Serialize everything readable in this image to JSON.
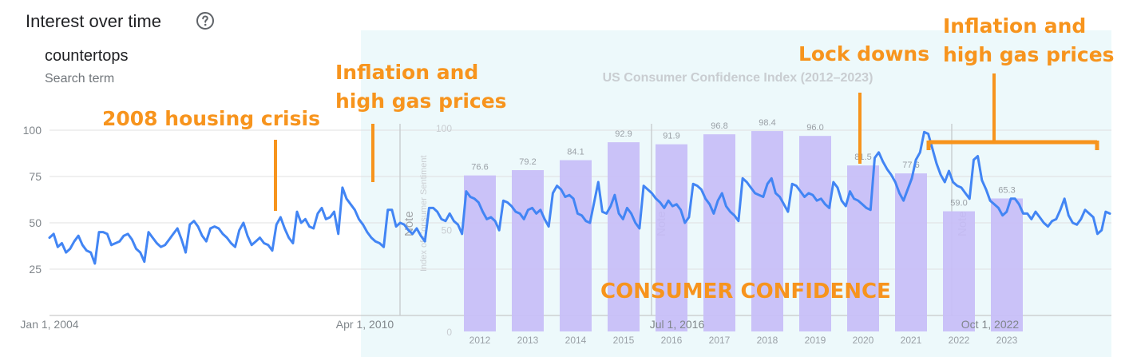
{
  "header": {
    "title": "Interest over time",
    "search_term": "countertops",
    "search_term_caption": "Search term"
  },
  "colors": {
    "trend_line": "#4285f4",
    "bars": "#c7bdf7",
    "overlay_bg": "#edf9fb",
    "annotation": "#f7941d",
    "grid": "#e0e0e0",
    "axis_text": "#80868b"
  },
  "chart_data": [
    {
      "type": "line",
      "series": [
        {
          "values": [
            42,
            44,
            37,
            39,
            34,
            36,
            40,
            43,
            38,
            35,
            34,
            28,
            45,
            45,
            44,
            38,
            39,
            40,
            43,
            44,
            41,
            36,
            34,
            29,
            45,
            42,
            39,
            37,
            38,
            41,
            44,
            47,
            41,
            34,
            49,
            51,
            48,
            43,
            40,
            47,
            48,
            47,
            44,
            42,
            39,
            37,
            46,
            50,
            43,
            38,
            40,
            42,
            39,
            38,
            35,
            49,
            53,
            47,
            42,
            39,
            56,
            50,
            52,
            48,
            47,
            55,
            58,
            52,
            53,
            56,
            44,
            69,
            63,
            60,
            57,
            52,
            49,
            45,
            42,
            40,
            39,
            37,
            57,
            57,
            48,
            50,
            49,
            46,
            44,
            47,
            43,
            40,
            58,
            58,
            56,
            52,
            51,
            55,
            51,
            49,
            44,
            67,
            64,
            63,
            61,
            56,
            52,
            53,
            51,
            46,
            62,
            61,
            59,
            56,
            55,
            52,
            57,
            58,
            55,
            57,
            52,
            48,
            66,
            70,
            68,
            64,
            65,
            63,
            55,
            54,
            51,
            50,
            61,
            72,
            56,
            55,
            59,
            65,
            55,
            52,
            58,
            55,
            50,
            47,
            70,
            68,
            66,
            63,
            61,
            58,
            62,
            59,
            60,
            57,
            50,
            53,
            71,
            70,
            68,
            63,
            60,
            55,
            62,
            66,
            59,
            56,
            54,
            51,
            74,
            72,
            69,
            66,
            65,
            64,
            71,
            74,
            66,
            64,
            60,
            56,
            71,
            70,
            67,
            64,
            66,
            65,
            62,
            63,
            60,
            58,
            72,
            69,
            62,
            59,
            67,
            63,
            62,
            60,
            58,
            57,
            85,
            88,
            83,
            79,
            76,
            72,
            66,
            62,
            68,
            74,
            84,
            88,
            99,
            98,
            90,
            82,
            76,
            72,
            78,
            72,
            70,
            69,
            66,
            63,
            84,
            86,
            73,
            68,
            62,
            60,
            58,
            54,
            56,
            63,
            63,
            60,
            55,
            55,
            52,
            56,
            53,
            50,
            48,
            51,
            52,
            57,
            63,
            54,
            50,
            49,
            52,
            57,
            55,
            53,
            44,
            46,
            56,
            55
          ],
          "marker": "lines"
        }
      ],
      "x_tick_labels": [
        "Jan 1, 2004",
        "Apr 1, 2010",
        "Jul 1, 2016",
        "Oct 1, 2022"
      ],
      "y_ticks": [
        25,
        50,
        75,
        100
      ],
      "ylim": [
        0,
        100
      ],
      "grid": true,
      "legend": "none"
    },
    {
      "type": "bar",
      "title": "US Consumer Confidence Index (2012–2023)",
      "ylabel": "Index of Consumer Sentiment",
      "categories": [
        "2012",
        "2013",
        "2014",
        "2015",
        "2016",
        "2017",
        "2018",
        "2019",
        "2020",
        "2021",
        "2022",
        "2023"
      ],
      "values": [
        76.6,
        79.2,
        84.1,
        92.9,
        91.9,
        96.8,
        98.4,
        96.0,
        81.5,
        77.6,
        59.0,
        65.3
      ],
      "data_labels": [
        "76.6",
        "79.2",
        "84.1",
        "92.9",
        "91.9",
        "96.8",
        "98.4",
        "96.0",
        "81.5",
        "77.6",
        "59.0",
        "65.3"
      ],
      "ylim": [
        0,
        100
      ],
      "y_tick_labels": [
        "0",
        "50",
        "100"
      ],
      "notes": [
        "Note",
        "Note",
        "Note"
      ]
    }
  ],
  "annotations": [
    {
      "id": "housing",
      "lines": [
        "2008 housing crisis"
      ]
    },
    {
      "id": "inflation1",
      "lines": [
        "Inflation and",
        "high gas prices"
      ]
    },
    {
      "id": "lockdowns",
      "lines": [
        "Lock downs"
      ]
    },
    {
      "id": "inflation2",
      "lines": [
        "Inflation and",
        "high gas prices"
      ]
    },
    {
      "id": "consumer",
      "lines": [
        "CONSUMER CONFIDENCE"
      ]
    }
  ]
}
